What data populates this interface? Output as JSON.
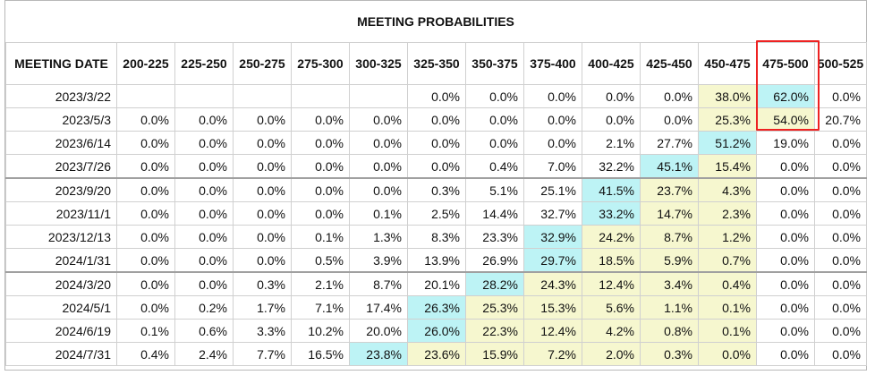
{
  "title": "MEETING PROBABILITIES",
  "header": {
    "date_label": "MEETING DATE",
    "ranges": [
      "200-225",
      "225-250",
      "250-275",
      "275-300",
      "300-325",
      "325-350",
      "350-375",
      "375-400",
      "400-425",
      "425-450",
      "450-475",
      "475-500",
      "500-525"
    ]
  },
  "rows": [
    {
      "date": "2023/3/22",
      "values": [
        "",
        "",
        "",
        "",
        "",
        "0.0%",
        "0.0%",
        "0.0%",
        "0.0%",
        "0.0%",
        "38.0%",
        "62.0%",
        "0.0%"
      ]
    },
    {
      "date": "2023/5/3",
      "values": [
        "0.0%",
        "0.0%",
        "0.0%",
        "0.0%",
        "0.0%",
        "0.0%",
        "0.0%",
        "0.0%",
        "0.0%",
        "0.0%",
        "25.3%",
        "54.0%",
        "20.7%"
      ]
    },
    {
      "date": "2023/6/14",
      "values": [
        "0.0%",
        "0.0%",
        "0.0%",
        "0.0%",
        "0.0%",
        "0.0%",
        "0.0%",
        "0.0%",
        "2.1%",
        "27.7%",
        "51.2%",
        "19.0%",
        "0.0%"
      ]
    },
    {
      "date": "2023/7/26",
      "values": [
        "0.0%",
        "0.0%",
        "0.0%",
        "0.0%",
        "0.0%",
        "0.0%",
        "0.4%",
        "7.0%",
        "32.2%",
        "45.1%",
        "15.4%",
        "0.0%",
        "0.0%"
      ]
    },
    {
      "date": "2023/9/20",
      "values": [
        "0.0%",
        "0.0%",
        "0.0%",
        "0.0%",
        "0.0%",
        "0.3%",
        "5.1%",
        "25.1%",
        "41.5%",
        "23.7%",
        "4.3%",
        "0.0%",
        "0.0%"
      ]
    },
    {
      "date": "2023/11/1",
      "values": [
        "0.0%",
        "0.0%",
        "0.0%",
        "0.0%",
        "0.1%",
        "2.5%",
        "14.4%",
        "32.7%",
        "33.2%",
        "14.7%",
        "2.3%",
        "0.0%",
        "0.0%"
      ]
    },
    {
      "date": "2023/12/13",
      "values": [
        "0.0%",
        "0.0%",
        "0.0%",
        "0.1%",
        "1.3%",
        "8.3%",
        "23.3%",
        "32.9%",
        "24.2%",
        "8.7%",
        "1.2%",
        "0.0%",
        "0.0%"
      ]
    },
    {
      "date": "2024/1/31",
      "values": [
        "0.0%",
        "0.0%",
        "0.0%",
        "0.5%",
        "3.9%",
        "13.9%",
        "26.9%",
        "29.7%",
        "18.5%",
        "5.9%",
        "0.7%",
        "0.0%",
        "0.0%"
      ]
    },
    {
      "date": "2024/3/20",
      "values": [
        "0.0%",
        "0.0%",
        "0.3%",
        "2.1%",
        "8.7%",
        "20.1%",
        "28.2%",
        "24.3%",
        "12.4%",
        "3.4%",
        "0.4%",
        "0.0%",
        "0.0%"
      ]
    },
    {
      "date": "2024/5/1",
      "values": [
        "0.0%",
        "0.2%",
        "1.7%",
        "7.1%",
        "17.4%",
        "26.3%",
        "25.3%",
        "15.3%",
        "5.6%",
        "1.1%",
        "0.1%",
        "0.0%",
        "0.0%"
      ]
    },
    {
      "date": "2024/6/19",
      "values": [
        "0.1%",
        "0.6%",
        "3.3%",
        "10.2%",
        "20.0%",
        "26.0%",
        "22.3%",
        "12.4%",
        "4.2%",
        "0.8%",
        "0.1%",
        "0.0%",
        "0.0%"
      ]
    },
    {
      "date": "2024/7/31",
      "values": [
        "0.4%",
        "2.4%",
        "7.7%",
        "16.5%",
        "23.8%",
        "23.6%",
        "15.9%",
        "7.2%",
        "2.0%",
        "0.3%",
        "0.0%",
        "0.0%",
        "0.0%"
      ]
    }
  ],
  "colors": {
    "highest": "#bdf3f5",
    "elevated": "#f6f7cf",
    "highlight_border": "#ee2222"
  }
}
